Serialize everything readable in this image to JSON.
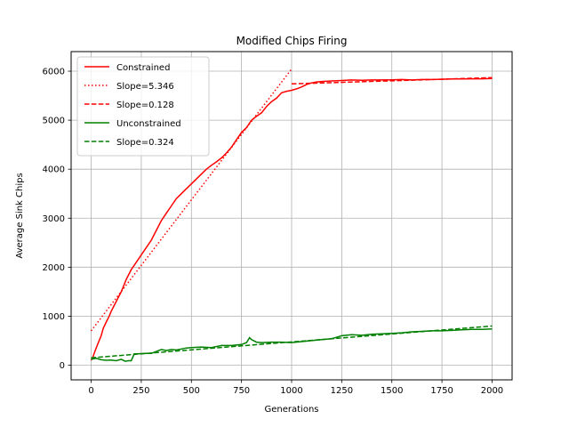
{
  "chart_data": {
    "type": "line",
    "title": "Modified Chips Firing",
    "xlabel": "Generations",
    "ylabel": "Average Sink Chips",
    "xlim": [
      -100,
      2100
    ],
    "ylim": [
      -300,
      6400
    ],
    "xticks": [
      0,
      250,
      500,
      750,
      1000,
      1250,
      1500,
      1750,
      2000
    ],
    "yticks": [
      0,
      1000,
      2000,
      3000,
      4000,
      5000,
      6000
    ],
    "grid": true,
    "legend_position": "top-left",
    "series": [
      {
        "name": "Constrained",
        "color": "#ff0000",
        "style": "solid",
        "x": [
          0,
          10,
          20,
          35,
          50,
          60,
          75,
          90,
          100,
          125,
          150,
          175,
          200,
          225,
          250,
          275,
          300,
          325,
          350,
          375,
          400,
          425,
          450,
          475,
          500,
          525,
          550,
          575,
          600,
          625,
          650,
          675,
          700,
          725,
          750,
          775,
          800,
          825,
          850,
          875,
          900,
          925,
          950,
          975,
          1000,
          1025,
          1050,
          1075,
          1100,
          1125,
          1150,
          1200,
          1250,
          1300,
          1350,
          1400,
          1450,
          1500,
          1550,
          1600,
          1650,
          1700,
          1750,
          1800,
          1850,
          1900,
          1950,
          2000
        ],
        "y": [
          100,
          180,
          300,
          450,
          600,
          750,
          880,
          1000,
          1100,
          1300,
          1500,
          1750,
          1950,
          2100,
          2250,
          2400,
          2550,
          2750,
          2950,
          3100,
          3250,
          3400,
          3500,
          3600,
          3700,
          3800,
          3900,
          4000,
          4080,
          4150,
          4230,
          4330,
          4450,
          4600,
          4750,
          4850,
          5000,
          5080,
          5150,
          5280,
          5380,
          5450,
          5560,
          5590,
          5610,
          5640,
          5680,
          5730,
          5760,
          5780,
          5790,
          5800,
          5810,
          5820,
          5815,
          5820,
          5820,
          5825,
          5830,
          5820,
          5830,
          5830,
          5835,
          5840,
          5840,
          5845,
          5845,
          5850
        ]
      },
      {
        "name": "Slope=5.346",
        "color": "#ff0000",
        "style": "dotted",
        "x": [
          0,
          1000
        ],
        "y": [
          700,
          6046
        ]
      },
      {
        "name": "Slope=0.128",
        "color": "#ff0000",
        "style": "dashed",
        "x": [
          1000,
          2000
        ],
        "y": [
          5740,
          5868
        ]
      },
      {
        "name": "Unconstrained",
        "color": "#008000",
        "style": "solid",
        "x": [
          0,
          25,
          50,
          75,
          100,
          125,
          150,
          170,
          185,
          200,
          215,
          225,
          250,
          275,
          300,
          325,
          350,
          375,
          400,
          425,
          450,
          475,
          500,
          550,
          600,
          650,
          700,
          750,
          775,
          790,
          800,
          825,
          850,
          900,
          950,
          1000,
          1050,
          1100,
          1150,
          1200,
          1250,
          1300,
          1350,
          1400,
          1450,
          1500,
          1550,
          1600,
          1650,
          1700,
          1750,
          1800,
          1850,
          1900,
          1950,
          2000
        ],
        "y": [
          120,
          140,
          110,
          100,
          105,
          90,
          120,
          80,
          90,
          90,
          230,
          230,
          235,
          240,
          240,
          280,
          320,
          300,
          320,
          310,
          330,
          350,
          360,
          370,
          360,
          400,
          400,
          420,
          460,
          560,
          520,
          470,
          460,
          470,
          470,
          460,
          480,
          500,
          520,
          540,
          600,
          620,
          610,
          630,
          640,
          650,
          660,
          680,
          690,
          700,
          700,
          710,
          720,
          730,
          730,
          740
        ]
      },
      {
        "name": "Slope=0.324",
        "color": "#008000",
        "style": "dashed",
        "x": [
          0,
          2000
        ],
        "y": [
          150,
          798
        ]
      }
    ]
  }
}
